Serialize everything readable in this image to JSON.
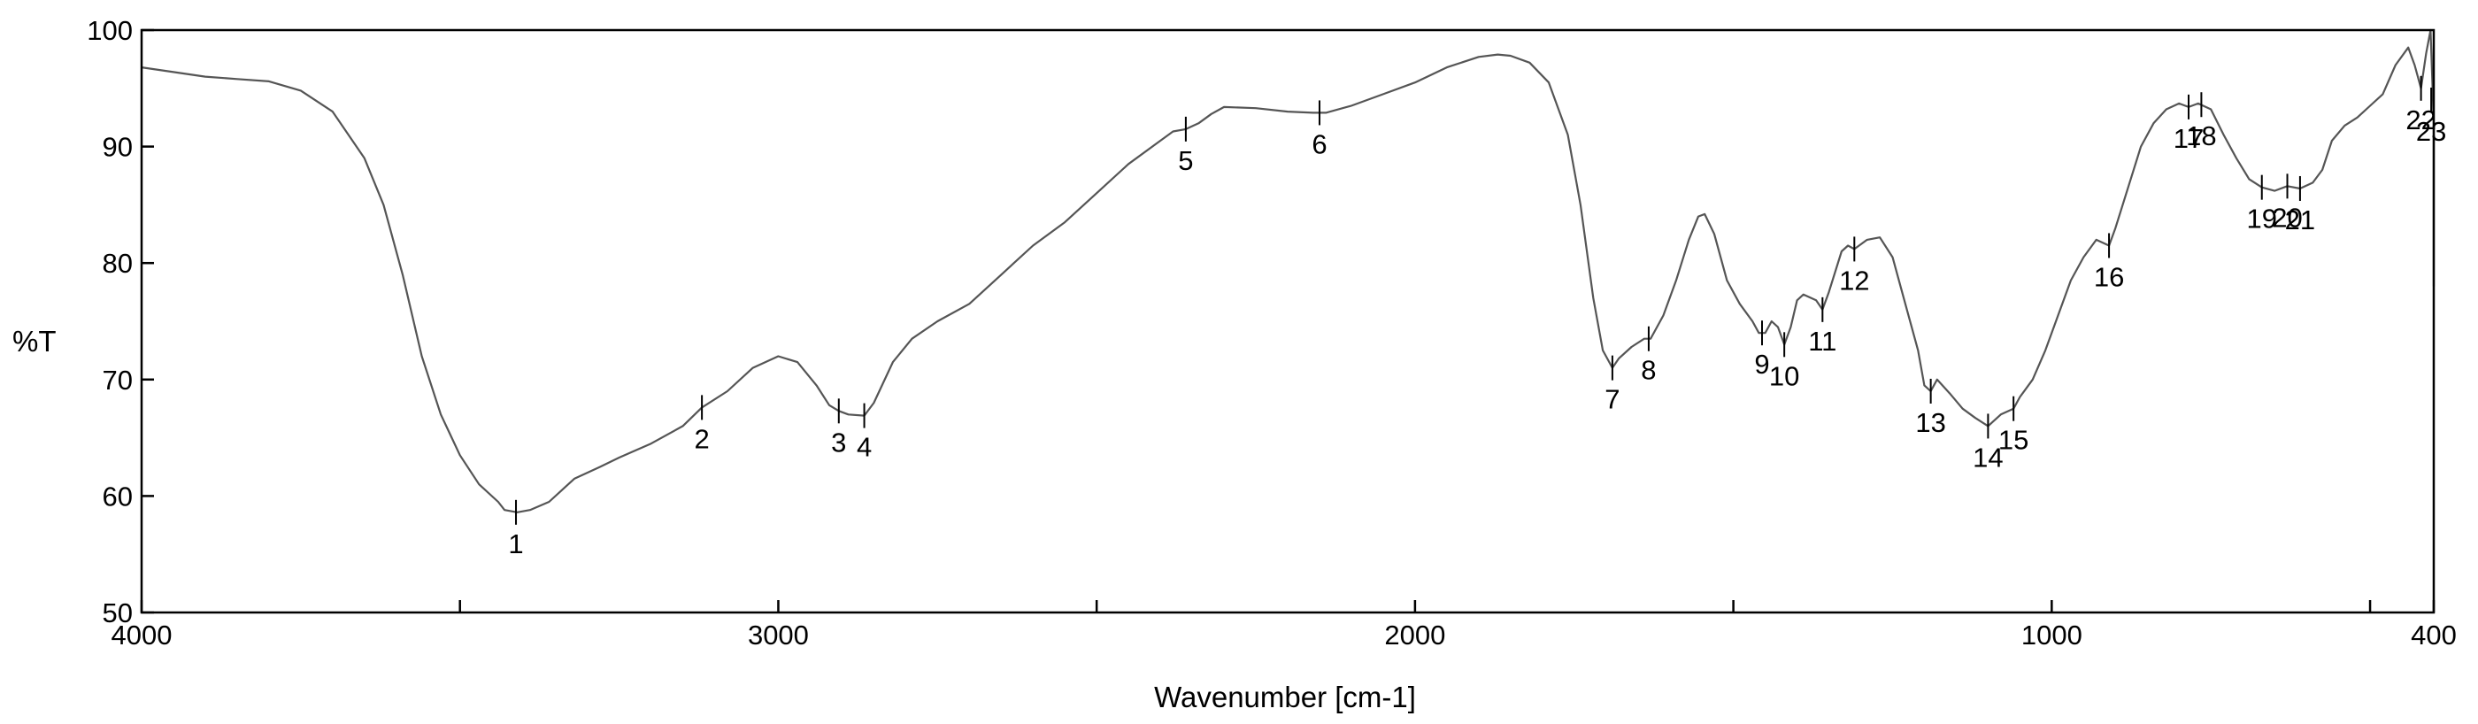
{
  "chart_data": {
    "type": "line",
    "xlabel": "Wavenumber [cm-1]",
    "ylabel": "%T",
    "xlim": [
      4000,
      400
    ],
    "ylim": [
      50,
      100
    ],
    "x_reversed": true,
    "grid": false,
    "x_ticks": [
      4000,
      3500,
      3000,
      2500,
      2000,
      1500,
      1000,
      500,
      400
    ],
    "x_tick_labels": [
      "4000",
      "",
      "3000",
      "",
      "2000",
      "",
      "1000",
      "",
      "400"
    ],
    "y_ticks": [
      50,
      60,
      70,
      80,
      90,
      100
    ],
    "y_tick_labels": [
      "50",
      "60",
      "70",
      "80",
      "90",
      "100"
    ],
    "series": [
      {
        "points": [
          [
            4000,
            96.8
          ],
          [
            3900,
            96.0
          ],
          [
            3850,
            95.8
          ],
          [
            3800,
            95.6
          ],
          [
            3750,
            94.8
          ],
          [
            3700,
            93.0
          ],
          [
            3650,
            89.0
          ],
          [
            3620,
            85.0
          ],
          [
            3590,
            79.0
          ],
          [
            3560,
            72.0
          ],
          [
            3530,
            67.0
          ],
          [
            3500,
            63.5
          ],
          [
            3470,
            61.0
          ],
          [
            3440,
            59.5
          ],
          [
            3430,
            58.8
          ],
          [
            3410,
            58.6
          ],
          [
            3390,
            58.8
          ],
          [
            3360,
            59.5
          ],
          [
            3320,
            61.5
          ],
          [
            3280,
            62.5
          ],
          [
            3250,
            63.3
          ],
          [
            3200,
            64.5
          ],
          [
            3150,
            66.0
          ],
          [
            3120,
            67.6
          ],
          [
            3080,
            69.0
          ],
          [
            3040,
            71.0
          ],
          [
            3000,
            72.0
          ],
          [
            2970,
            71.5
          ],
          [
            2940,
            69.5
          ],
          [
            2920,
            67.8
          ],
          [
            2905,
            67.3
          ],
          [
            2890,
            67.0
          ],
          [
            2865,
            66.9
          ],
          [
            2850,
            68.0
          ],
          [
            2820,
            71.5
          ],
          [
            2790,
            73.5
          ],
          [
            2750,
            75.0
          ],
          [
            2700,
            76.5
          ],
          [
            2650,
            79.0
          ],
          [
            2600,
            81.5
          ],
          [
            2550,
            83.5
          ],
          [
            2500,
            86.0
          ],
          [
            2450,
            88.5
          ],
          [
            2400,
            90.5
          ],
          [
            2380,
            91.3
          ],
          [
            2360,
            91.5
          ],
          [
            2340,
            92.0
          ],
          [
            2320,
            92.8
          ],
          [
            2300,
            93.4
          ],
          [
            2250,
            93.3
          ],
          [
            2200,
            93.0
          ],
          [
            2160,
            92.9
          ],
          [
            2140,
            92.9
          ],
          [
            2100,
            93.5
          ],
          [
            2050,
            94.5
          ],
          [
            2000,
            95.5
          ],
          [
            1950,
            96.8
          ],
          [
            1900,
            97.7
          ],
          [
            1870,
            97.9
          ],
          [
            1850,
            97.8
          ],
          [
            1820,
            97.2
          ],
          [
            1790,
            95.5
          ],
          [
            1760,
            91.0
          ],
          [
            1740,
            85.0
          ],
          [
            1720,
            77.0
          ],
          [
            1705,
            72.5
          ],
          [
            1690,
            71.0
          ],
          [
            1680,
            71.8
          ],
          [
            1660,
            72.8
          ],
          [
            1640,
            73.5
          ],
          [
            1630,
            73.5
          ],
          [
            1610,
            75.5
          ],
          [
            1590,
            78.5
          ],
          [
            1570,
            82.0
          ],
          [
            1555,
            84.0
          ],
          [
            1545,
            84.2
          ],
          [
            1530,
            82.5
          ],
          [
            1510,
            78.5
          ],
          [
            1490,
            76.5
          ],
          [
            1470,
            75.0
          ],
          [
            1460,
            74.0
          ],
          [
            1450,
            74.0
          ],
          [
            1440,
            75.0
          ],
          [
            1430,
            74.5
          ],
          [
            1420,
            73.0
          ],
          [
            1410,
            74.5
          ],
          [
            1400,
            76.8
          ],
          [
            1390,
            77.3
          ],
          [
            1370,
            76.8
          ],
          [
            1360,
            76.0
          ],
          [
            1350,
            77.5
          ],
          [
            1330,
            81.0
          ],
          [
            1320,
            81.5
          ],
          [
            1310,
            81.2
          ],
          [
            1290,
            82.0
          ],
          [
            1270,
            82.2
          ],
          [
            1250,
            80.5
          ],
          [
            1230,
            76.5
          ],
          [
            1210,
            72.5
          ],
          [
            1200,
            69.5
          ],
          [
            1190,
            69.0
          ],
          [
            1180,
            70.0
          ],
          [
            1160,
            68.8
          ],
          [
            1140,
            67.5
          ],
          [
            1120,
            66.7
          ],
          [
            1100,
            66.0
          ],
          [
            1080,
            67.0
          ],
          [
            1060,
            67.5
          ],
          [
            1050,
            68.5
          ],
          [
            1030,
            70.0
          ],
          [
            1010,
            72.5
          ],
          [
            990,
            75.5
          ],
          [
            970,
            78.5
          ],
          [
            950,
            80.5
          ],
          [
            930,
            82.0
          ],
          [
            910,
            81.5
          ],
          [
            900,
            83.0
          ],
          [
            880,
            86.5
          ],
          [
            860,
            90.0
          ],
          [
            840,
            92.0
          ],
          [
            820,
            93.2
          ],
          [
            800,
            93.7
          ],
          [
            785,
            93.4
          ],
          [
            770,
            93.7
          ],
          [
            750,
            93.2
          ],
          [
            730,
            91.0
          ],
          [
            710,
            89.0
          ],
          [
            690,
            87.2
          ],
          [
            670,
            86.5
          ],
          [
            650,
            86.2
          ],
          [
            630,
            86.6
          ],
          [
            610,
            86.4
          ],
          [
            590,
            86.9
          ],
          [
            575,
            88.0
          ],
          [
            560,
            90.5
          ],
          [
            540,
            91.8
          ],
          [
            520,
            92.5
          ],
          [
            500,
            93.5
          ],
          [
            480,
            94.5
          ],
          [
            460,
            97.0
          ],
          [
            440,
            98.5
          ],
          [
            430,
            97.0
          ],
          [
            420,
            95.0
          ],
          [
            412,
            98.0
          ],
          [
            405,
            100.0
          ],
          [
            400,
            92.0
          ],
          [
            400,
            78.0
          ]
        ]
      }
    ],
    "peaks": [
      {
        "label": "1",
        "x": 3412,
        "y": 58.6
      },
      {
        "label": "2",
        "x": 3120,
        "y": 67.6
      },
      {
        "label": "3",
        "x": 2905,
        "y": 67.3
      },
      {
        "label": "4",
        "x": 2865,
        "y": 66.9
      },
      {
        "label": "5",
        "x": 2360,
        "y": 91.5
      },
      {
        "label": "6",
        "x": 2150,
        "y": 92.9
      },
      {
        "label": "7",
        "x": 1690,
        "y": 71.0
      },
      {
        "label": "8",
        "x": 1633,
        "y": 73.5
      },
      {
        "label": "9",
        "x": 1455,
        "y": 74.0
      },
      {
        "label": "10",
        "x": 1420,
        "y": 73.0
      },
      {
        "label": "11",
        "x": 1360,
        "y": 76.0
      },
      {
        "label": "12",
        "x": 1310,
        "y": 81.2
      },
      {
        "label": "13",
        "x": 1190,
        "y": 69.0
      },
      {
        "label": "14",
        "x": 1100,
        "y": 66.0
      },
      {
        "label": "15",
        "x": 1060,
        "y": 67.5
      },
      {
        "label": "16",
        "x": 910,
        "y": 81.5
      },
      {
        "label": "17",
        "x": 785,
        "y": 93.4
      },
      {
        "label": "18",
        "x": 765,
        "y": 93.6
      },
      {
        "label": "19",
        "x": 670,
        "y": 86.5
      },
      {
        "label": "20",
        "x": 630,
        "y": 86.6
      },
      {
        "label": "21",
        "x": 610,
        "y": 86.4
      },
      {
        "label": "22",
        "x": 420,
        "y": 95.0
      },
      {
        "label": "23",
        "x": 404,
        "y": 94.0
      }
    ]
  }
}
